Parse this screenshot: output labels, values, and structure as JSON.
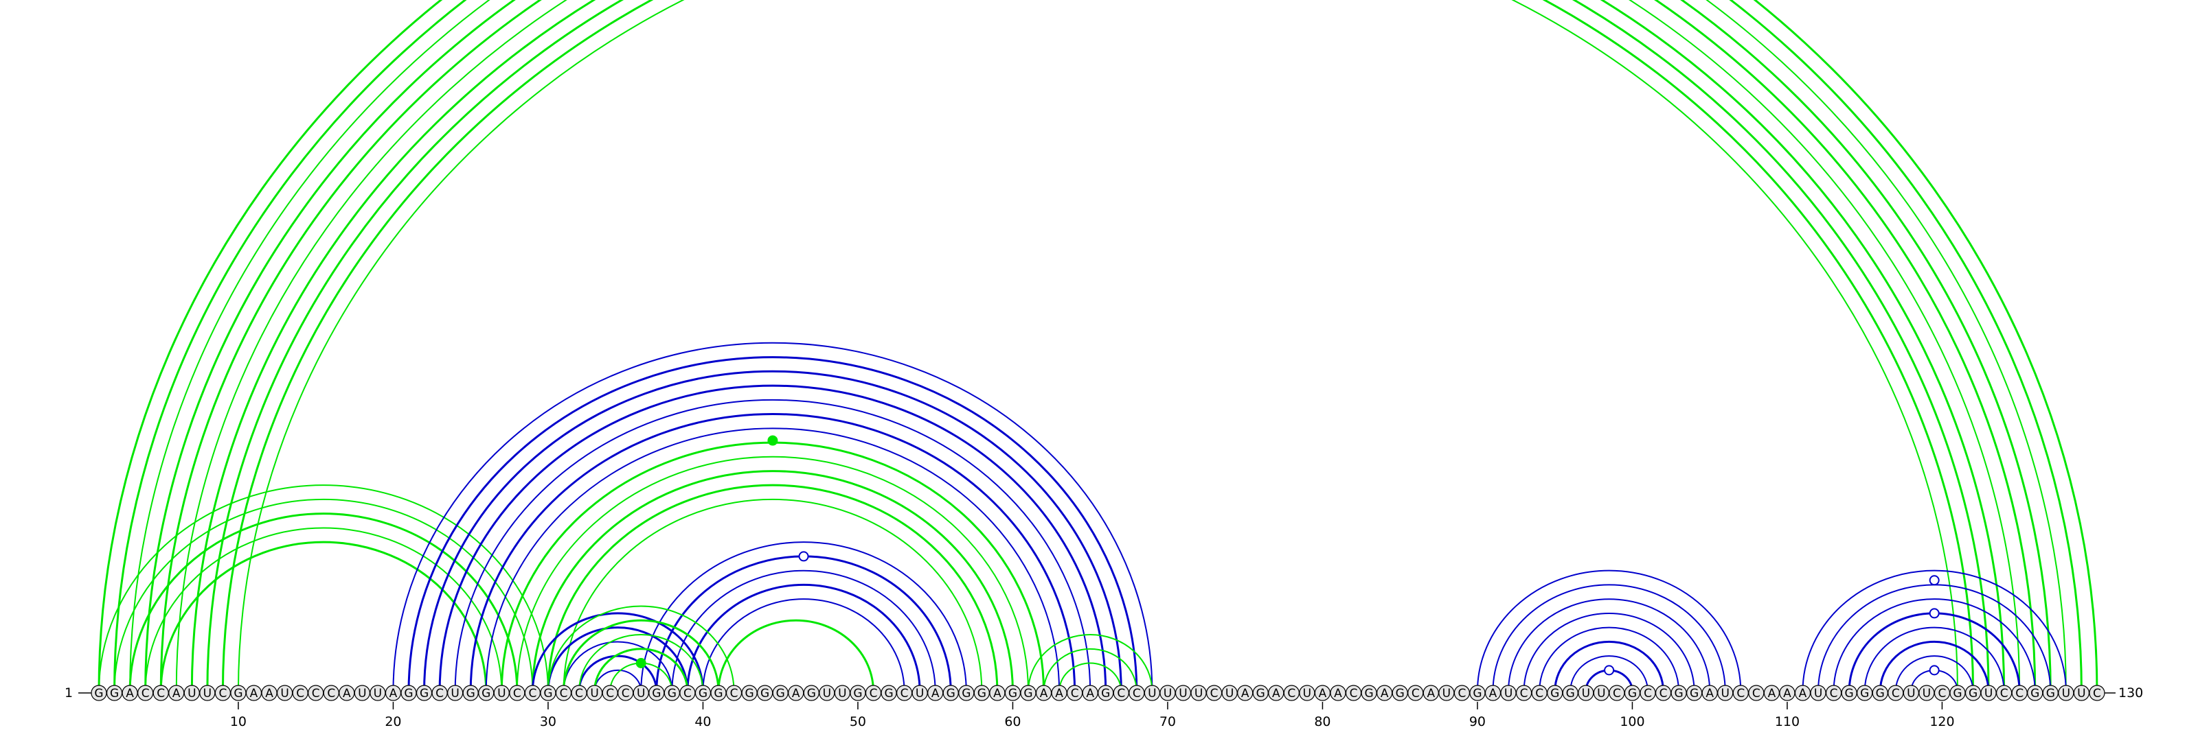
{
  "sequence": "GGACCAUUCGAAUCCCAUUAGGCUGGUCCGCCUCCUGGCGGCGGGAGUUGCGCUAGGGAGGAACAGCCUUUUCUAGACUAACGAGCAUCGAUCCGGUUCGCCGGAUCCAAAUCGGGCUUCGGUCCGGUUC",
  "start_label": "1",
  "end_label": "130",
  "ticks": [
    10,
    20,
    30,
    40,
    50,
    60,
    70,
    80,
    90,
    100,
    110,
    120
  ],
  "colors": {
    "green": "#00e600",
    "blue": "#0000cc"
  },
  "arcs": [
    {
      "i": 1,
      "j": 130,
      "c": "green",
      "w": 3
    },
    {
      "i": 2,
      "j": 129,
      "c": "green",
      "w": 3
    },
    {
      "i": 3,
      "j": 128,
      "c": "green",
      "w": 2
    },
    {
      "i": 4,
      "j": 127,
      "c": "green",
      "w": 3
    },
    {
      "i": 5,
      "j": 126,
      "c": "green",
      "w": 3
    },
    {
      "i": 6,
      "j": 125,
      "c": "green",
      "w": 2
    },
    {
      "i": 7,
      "j": 124,
      "c": "green",
      "w": 3
    },
    {
      "i": 8,
      "j": 123,
      "c": "green",
      "w": 3
    },
    {
      "i": 9,
      "j": 122,
      "c": "green",
      "w": 3
    },
    {
      "i": 10,
      "j": 121,
      "c": "green",
      "w": 2
    },
    {
      "i": 1,
      "j": 30,
      "c": "green",
      "w": 2
    },
    {
      "i": 2,
      "j": 29,
      "c": "green",
      "w": 2
    },
    {
      "i": 3,
      "j": 28,
      "c": "green",
      "w": 3
    },
    {
      "i": 4,
      "j": 27,
      "c": "green",
      "w": 2
    },
    {
      "i": 5,
      "j": 26,
      "c": "green",
      "w": 3
    },
    {
      "i": 20,
      "j": 69,
      "c": "blue",
      "w": 2
    },
    {
      "i": 21,
      "j": 68,
      "c": "blue",
      "w": 3
    },
    {
      "i": 22,
      "j": 67,
      "c": "blue",
      "w": 3
    },
    {
      "i": 23,
      "j": 66,
      "c": "blue",
      "w": 3
    },
    {
      "i": 24,
      "j": 65,
      "c": "blue",
      "w": 2
    },
    {
      "i": 25,
      "j": 64,
      "c": "blue",
      "w": 3
    },
    {
      "i": 26,
      "j": 63,
      "c": "blue",
      "w": 2
    },
    {
      "i": 27,
      "j": 62,
      "c": "green",
      "w": 3
    },
    {
      "i": 28,
      "j": 61,
      "c": "green",
      "w": 2
    },
    {
      "i": 29,
      "j": 60,
      "c": "green",
      "w": 3
    },
    {
      "i": 30,
      "j": 59,
      "c": "green",
      "w": 3
    },
    {
      "i": 31,
      "j": 58,
      "c": "green",
      "w": 2
    },
    {
      "i": 36,
      "j": 57,
      "c": "blue",
      "w": 2
    },
    {
      "i": 37,
      "j": 56,
      "c": "blue",
      "w": 3
    },
    {
      "i": 38,
      "j": 55,
      "c": "blue",
      "w": 2
    },
    {
      "i": 39,
      "j": 54,
      "c": "blue",
      "w": 3
    },
    {
      "i": 40,
      "j": 53,
      "c": "blue",
      "w": 2
    },
    {
      "i": 41,
      "j": 51,
      "c": "green",
      "w": 3
    },
    {
      "i": 29,
      "j": 40,
      "c": "blue",
      "w": 3
    },
    {
      "i": 30,
      "j": 39,
      "c": "blue",
      "w": 3
    },
    {
      "i": 31,
      "j": 38,
      "c": "blue",
      "w": 2
    },
    {
      "i": 32,
      "j": 37,
      "c": "blue",
      "w": 3
    },
    {
      "i": 33,
      "j": 36,
      "c": "blue",
      "w": 2
    },
    {
      "i": 30,
      "j": 42,
      "c": "green",
      "w": 2
    },
    {
      "i": 31,
      "j": 41,
      "c": "green",
      "w": 3
    },
    {
      "i": 32,
      "j": 40,
      "c": "green",
      "w": 2
    },
    {
      "i": 33,
      "j": 39,
      "c": "green",
      "w": 3
    },
    {
      "i": 34,
      "j": 38,
      "c": "green",
      "w": 2
    },
    {
      "i": 61,
      "j": 69,
      "c": "green",
      "w": 2
    },
    {
      "i": 62,
      "j": 68,
      "c": "green",
      "w": 2
    },
    {
      "i": 63,
      "j": 67,
      "c": "green",
      "w": 2
    },
    {
      "i": 90,
      "j": 107,
      "c": "blue",
      "w": 2
    },
    {
      "i": 91,
      "j": 106,
      "c": "blue",
      "w": 2
    },
    {
      "i": 92,
      "j": 105,
      "c": "blue",
      "w": 2
    },
    {
      "i": 93,
      "j": 104,
      "c": "blue",
      "w": 2
    },
    {
      "i": 94,
      "j": 103,
      "c": "blue",
      "w": 2
    },
    {
      "i": 95,
      "j": 102,
      "c": "blue",
      "w": 3
    },
    {
      "i": 96,
      "j": 101,
      "c": "blue",
      "w": 2
    },
    {
      "i": 97,
      "j": 100,
      "c": "blue",
      "w": 3
    },
    {
      "i": 111,
      "j": 128,
      "c": "blue",
      "w": 2
    },
    {
      "i": 112,
      "j": 127,
      "c": "blue",
      "w": 2
    },
    {
      "i": 113,
      "j": 126,
      "c": "blue",
      "w": 2
    },
    {
      "i": 114,
      "j": 125,
      "c": "blue",
      "w": 3
    },
    {
      "i": 115,
      "j": 124,
      "c": "blue",
      "w": 2
    },
    {
      "i": 116,
      "j": 123,
      "c": "blue",
      "w": 3
    },
    {
      "i": 117,
      "j": 122,
      "c": "blue",
      "w": 2
    },
    {
      "i": 118,
      "j": 121,
      "c": "blue",
      "w": 2
    }
  ],
  "markers": [
    {
      "i": 1,
      "j": 130,
      "c": "green",
      "filled": false
    },
    {
      "i": 20,
      "j": 69,
      "c": "green",
      "filled": true,
      "level": 0.72
    },
    {
      "i": 37,
      "j": 56,
      "c": "blue",
      "filled": false
    },
    {
      "i": 97,
      "j": 100,
      "c": "blue",
      "filled": false
    },
    {
      "i": 111,
      "j": 128,
      "c": "blue",
      "filled": false,
      "level": 0.92
    },
    {
      "i": 114,
      "j": 125,
      "c": "blue",
      "filled": false
    },
    {
      "i": 118,
      "j": 121,
      "c": "blue",
      "filled": false
    },
    {
      "i": 34,
      "j": 38,
      "c": "green",
      "filled": true
    }
  ]
}
